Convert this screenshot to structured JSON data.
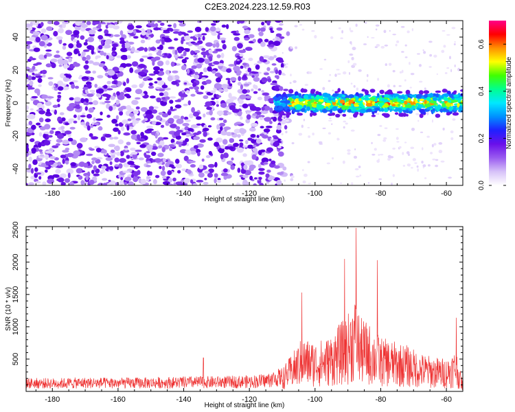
{
  "title": "C2E3.2024.223.12.59.R03",
  "chart_data": [
    {
      "type": "heatmap",
      "xlabel": "Height of straight line (km)",
      "ylabel": "Frequency (Hz)",
      "colorbar_label": "Normalized spectral amplitude",
      "xlim": [
        -188,
        -55
      ],
      "ylim": [
        -50,
        50
      ],
      "x_ticks": [
        -180,
        -160,
        -140,
        -120,
        -100,
        -80,
        -60
      ],
      "y_ticks": [
        -40,
        -20,
        0,
        20,
        40
      ],
      "colorbar_range": [
        0,
        0.7
      ],
      "colorbar_ticks": [
        0.0,
        0.2,
        0.4,
        0.6
      ],
      "colormap": [
        "#ffffff",
        "#d7c2f8",
        "#9a5cf0",
        "#6a10ea",
        "#1a1aff",
        "#00a8ff",
        "#00ffd0",
        "#30ff30",
        "#ffff00",
        "#ff8000",
        "#ff0000",
        "#ff0088"
      ],
      "features": [
        {
          "x_range": [
            -188,
            -110
          ],
          "freq_range": [
            -50,
            50
          ],
          "amplitude": 0.08,
          "texture": "broadband noise"
        },
        {
          "x_range": [
            -110,
            -56
          ],
          "freq_center": 0,
          "freq_halfwidth": 5,
          "amplitude": 0.45,
          "texture": "narrow band at 0 Hz"
        }
      ]
    },
    {
      "type": "line",
      "xlabel": "Height of straight line (km)",
      "ylabel": "SNR (10 * v/v)",
      "xlim": [
        -188,
        -55
      ],
      "ylim": [
        0,
        2550
      ],
      "x_ticks": [
        -180,
        -160,
        -140,
        -120,
        -100,
        -80,
        -60
      ],
      "y_ticks": [
        500,
        1000,
        1500,
        2000,
        2500
      ],
      "line_color": "#ee3333",
      "series": [
        {
          "x": [
            -188,
            -180,
            -170,
            -160,
            -150,
            -140,
            -130,
            -120,
            -115,
            -110,
            -106,
            -104,
            -100,
            -96,
            -92,
            -90,
            -88,
            -87,
            -86,
            -84,
            -80,
            -76,
            -72,
            -68,
            -64,
            -60,
            -57,
            -56,
            -55
          ],
          "y": [
            170,
            165,
            175,
            170,
            175,
            185,
            190,
            200,
            220,
            300,
            550,
            700,
            650,
            700,
            900,
            1000,
            1250,
            1100,
            950,
            900,
            700,
            650,
            600,
            500,
            450,
            430,
            550,
            300,
            150
          ]
        }
      ],
      "peaks": [
        {
          "x": -134,
          "y": 520
        },
        {
          "x": -104,
          "y": 1530
        },
        {
          "x": -91,
          "y": 2050
        },
        {
          "x": -87.5,
          "y": 2530
        },
        {
          "x": -81,
          "y": 2030
        },
        {
          "x": -57,
          "y": 1140
        }
      ]
    }
  ]
}
